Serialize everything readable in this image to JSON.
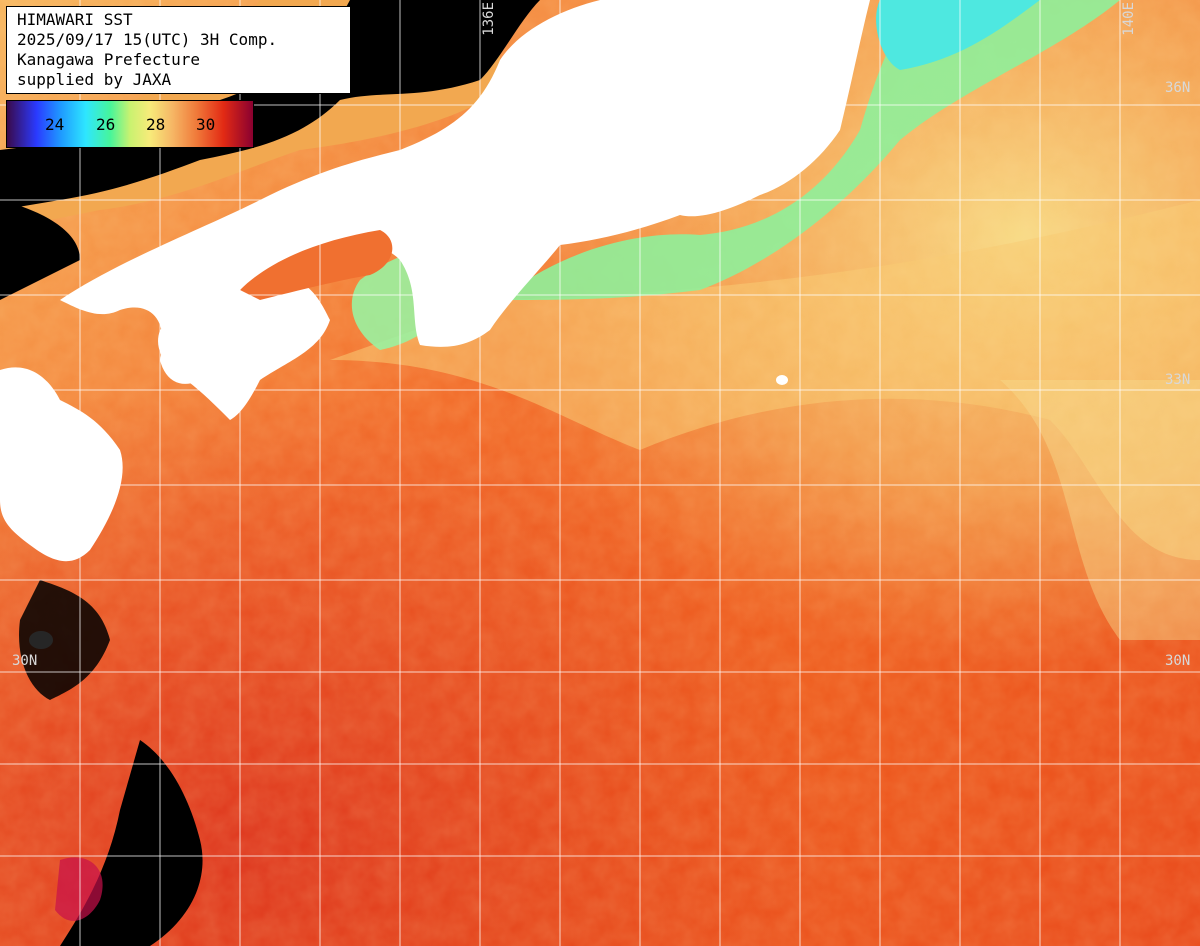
{
  "header": {
    "line1": "HIMAWARI SST",
    "line2": "2025/09/17 15(UTC) 3H Comp.",
    "line3": "Kanagawa Prefecture",
    "line4": "supplied by JAXA"
  },
  "legend": {
    "ticks": [
      "24",
      "26",
      "28",
      "30"
    ]
  },
  "grid": {
    "lon_136": "136E",
    "lon_140": "140E",
    "lat_36": "36N",
    "lat_33": "33N",
    "lat_30_left": "30N",
    "lat_30_right": "30N"
  },
  "colors": {
    "land": "#ffffff",
    "no_data": "#000000",
    "warm_sea": "#f05a1e",
    "hot_sea": "#e2321a",
    "mild_sea": "#f7c26a",
    "coastal_cool": "#7ff0a0",
    "cold": "#33e6ff",
    "grid": "#ffffff"
  }
}
